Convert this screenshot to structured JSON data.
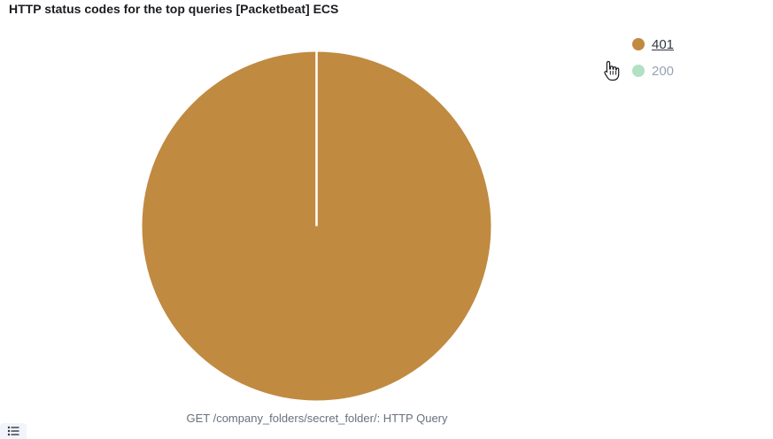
{
  "panel": {
    "title": "HTTP status codes for the top queries [Packetbeat] ECS"
  },
  "chart_data": {
    "type": "pie",
    "categories": [
      "401",
      "200"
    ],
    "values": [
      100,
      0
    ],
    "colors": [
      "#c08a41",
      "#b2e0c5"
    ],
    "slice_label": "GET /company_folders/secret_folder/: HTTP Query",
    "legend": {
      "placement": "top-right",
      "items": [
        {
          "label": "401",
          "color": "#c08a41",
          "state": "active"
        },
        {
          "label": "200",
          "color": "#b2e0c5",
          "state": "inactive"
        }
      ]
    }
  },
  "icons": {
    "legend_toggle": "list-icon",
    "cursor": "pointer-hand-icon"
  }
}
